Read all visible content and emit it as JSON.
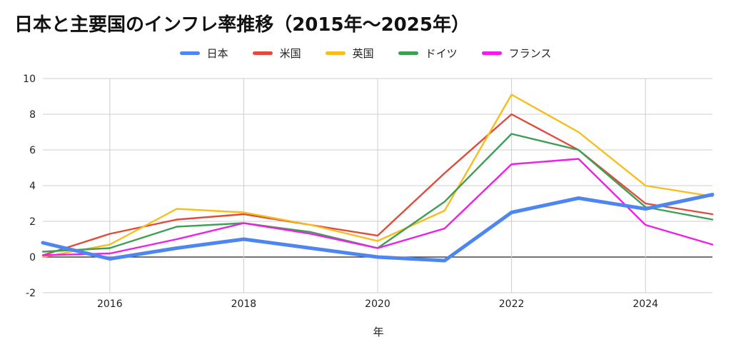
{
  "chart_data": {
    "type": "line",
    "title": "日本と主要国のインフレ率推移（2015年〜2025年）",
    "xlabel": "年",
    "ylabel": "",
    "x": [
      2015,
      2016,
      2017,
      2018,
      2019,
      2020,
      2021,
      2022,
      2023,
      2024,
      2025
    ],
    "xlim": [
      2015,
      2025
    ],
    "ylim": [
      -2,
      10
    ],
    "xticks": [
      "2016",
      "2018",
      "2020",
      "2022",
      "2024"
    ],
    "yticks": [
      "-2",
      "0",
      "2",
      "4",
      "6",
      "8",
      "10"
    ],
    "grid": true,
    "legend_position": "top-center",
    "series": [
      {
        "name": "日本",
        "color": "#4d86f0",
        "values": [
          0.8,
          -0.1,
          0.5,
          1.0,
          0.5,
          0.0,
          -0.2,
          2.5,
          3.3,
          2.7,
          3.5
        ]
      },
      {
        "name": "米国",
        "color": "#e04b3c",
        "values": [
          0.1,
          1.3,
          2.1,
          2.4,
          1.8,
          1.2,
          4.7,
          8.0,
          6.0,
          3.0,
          2.4
        ]
      },
      {
        "name": "英国",
        "color": "#f7bd1a",
        "values": [
          0.0,
          0.7,
          2.7,
          2.5,
          1.8,
          0.9,
          2.6,
          9.1,
          7.0,
          4.0,
          3.4
        ]
      },
      {
        "name": "ドイツ",
        "color": "#3e9e54",
        "values": [
          0.3,
          0.5,
          1.7,
          1.9,
          1.4,
          0.5,
          3.1,
          6.9,
          6.0,
          2.8,
          2.1
        ]
      },
      {
        "name": "フランス",
        "color": "#ef1ee8",
        "values": [
          0.1,
          0.2,
          1.0,
          1.9,
          1.3,
          0.5,
          1.6,
          5.2,
          5.5,
          1.8,
          0.7
        ]
      }
    ]
  }
}
